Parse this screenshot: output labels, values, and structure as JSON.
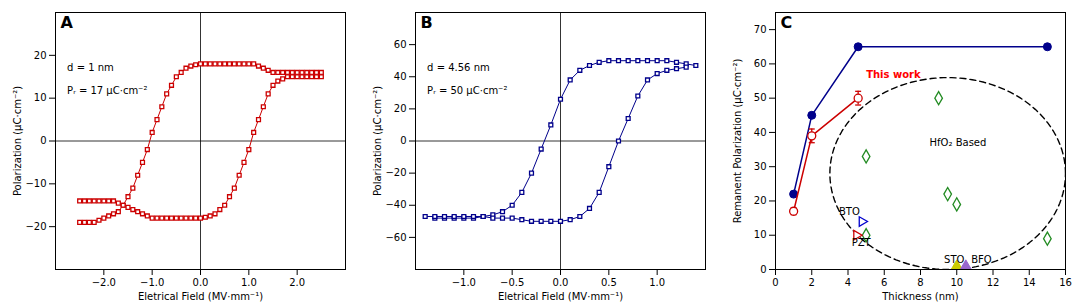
{
  "chart_data": [
    {
      "type": "line",
      "panel_label": "A",
      "xlabel": "Eletrical Field (MV·mm⁻¹)",
      "ylabel": "Polarization (μC·cm⁻²)",
      "xlim": [
        -3,
        3
      ],
      "ylim": [
        -30,
        30
      ],
      "xticks": [
        -2,
        -1,
        0,
        1,
        2
      ],
      "yticks": [
        -20,
        -10,
        0,
        10,
        20
      ],
      "hline": 0,
      "vline": 0,
      "annotations": [
        {
          "text": "d = 1 nm"
        },
        {
          "text": "Pᵣ = 17 μC·cm⁻²"
        }
      ],
      "series": [
        {
          "x": [
            -2.5,
            -2.4,
            -2.3,
            -2.2,
            -2.1,
            -2.0,
            -1.9,
            -1.8,
            -1.7,
            -1.6,
            -1.5,
            -1.4,
            -1.3,
            -1.2,
            -1.1,
            -1.0,
            -0.9,
            -0.8,
            -0.7,
            -0.6,
            -0.5,
            -0.4,
            -0.3,
            -0.2,
            -0.1,
            0.0,
            0.1,
            0.2,
            0.3,
            0.4,
            0.5,
            0.6,
            0.7,
            0.8,
            0.9,
            1.0,
            1.1,
            1.2,
            1.3,
            1.4,
            1.5,
            1.6,
            1.7,
            1.8,
            1.9,
            2.0,
            2.1,
            2.2,
            2.3,
            2.4,
            2.5
          ],
          "values": [
            -19,
            -19,
            -19,
            -19,
            -18.5,
            -18,
            -17.5,
            -17,
            -16.5,
            -15,
            -13,
            -11,
            -8,
            -5,
            -2,
            2,
            5,
            8,
            11,
            13,
            15,
            16,
            17,
            17.5,
            17.8,
            18,
            18,
            18,
            18,
            18,
            18,
            18,
            18,
            18,
            18,
            18,
            18,
            17.5,
            17,
            16.5,
            16,
            16,
            16,
            16,
            16,
            16,
            16,
            16,
            16,
            16,
            16
          ],
          "color": "#cc0000",
          "marker": "square_open"
        },
        {
          "x": [
            2.5,
            2.4,
            2.3,
            2.2,
            2.1,
            2.0,
            1.9,
            1.8,
            1.7,
            1.6,
            1.5,
            1.4,
            1.3,
            1.2,
            1.1,
            1.0,
            0.9,
            0.8,
            0.7,
            0.6,
            0.5,
            0.4,
            0.3,
            0.2,
            0.1,
            0.0,
            -0.1,
            -0.2,
            -0.3,
            -0.4,
            -0.5,
            -0.6,
            -0.7,
            -0.8,
            -0.9,
            -1.0,
            -1.1,
            -1.2,
            -1.3,
            -1.4,
            -1.5,
            -1.6,
            -1.7,
            -1.8,
            -1.9,
            -2.0,
            -2.1,
            -2.2,
            -2.3,
            -2.4,
            -2.5
          ],
          "values": [
            15,
            15,
            15,
            15,
            15,
            15,
            15,
            15,
            14.5,
            14,
            13,
            11,
            8,
            5,
            2,
            -2,
            -5,
            -8,
            -11,
            -13,
            -15,
            -16,
            -17,
            -17.5,
            -17.8,
            -18,
            -18,
            -18,
            -18,
            -18,
            -18,
            -18,
            -18,
            -18,
            -18,
            -18,
            -17.5,
            -17,
            -16.5,
            -16,
            -15.5,
            -15,
            -14.5,
            -14,
            -14,
            -14,
            -14,
            -14,
            -14,
            -14,
            -14
          ],
          "color": "#cc0000",
          "marker": "square_open"
        }
      ]
    },
    {
      "type": "line",
      "panel_label": "B",
      "xlabel": "Eletrical Field (MV·mm⁻¹)",
      "ylabel": "Polarization (μC·cm⁻²)",
      "xlim": [
        -1.5,
        1.5
      ],
      "ylim": [
        -80,
        80
      ],
      "xticks": [
        {
          "value": -1.0,
          "label": "−1.0"
        },
        {
          "value": -0.5,
          "label": "−0.5"
        },
        {
          "value": 0.0,
          "label": "0.0"
        },
        {
          "value": 0.5,
          "label": "0.5"
        },
        {
          "value": 1.0,
          "label": "1.0"
        }
      ],
      "yticks": [
        -60,
        -40,
        -20,
        0,
        20,
        40,
        60
      ],
      "hline": 0,
      "vline": 0,
      "annotations": [
        {
          "text": "d = 4.56 nm"
        },
        {
          "text": "Pᵣ = 50 μC·cm⁻²"
        }
      ],
      "series": [
        {
          "x": [
            -1.3,
            -1.2,
            -1.1,
            -1.0,
            -0.9,
            -0.8,
            -0.7,
            -0.6,
            -0.5,
            -0.4,
            -0.3,
            -0.2,
            -0.1,
            0.0,
            0.1,
            0.2,
            0.3,
            0.4,
            0.5,
            0.6,
            0.7,
            0.8,
            0.9,
            1.0,
            1.1,
            1.2,
            1.3,
            1.4
          ],
          "values": [
            -48,
            -48,
            -48,
            -48,
            -48,
            -47,
            -46,
            -44,
            -40,
            -32,
            -20,
            -5,
            10,
            26,
            38,
            44,
            47,
            49,
            50,
            50,
            50,
            50,
            50,
            50,
            50,
            49,
            48,
            47
          ],
          "color": "#00008B",
          "marker": "square_open"
        },
        {
          "x": [
            1.3,
            1.2,
            1.1,
            1.0,
            0.9,
            0.8,
            0.7,
            0.6,
            0.5,
            0.4,
            0.3,
            0.2,
            0.1,
            0.0,
            -0.1,
            -0.2,
            -0.3,
            -0.4,
            -0.5,
            -0.6,
            -0.7,
            -0.8,
            -0.9,
            -1.0,
            -1.1,
            -1.2,
            -1.3,
            -1.4
          ],
          "values": [
            46,
            45,
            44,
            42,
            38,
            28,
            14,
            0,
            -16,
            -32,
            -42,
            -47,
            -49,
            -50,
            -50,
            -50,
            -50,
            -49,
            -48,
            -48,
            -48,
            -47,
            -47,
            -47,
            -47,
            -47,
            -47,
            -47
          ],
          "color": "#00008B",
          "marker": "square_open"
        }
      ]
    },
    {
      "type": "line",
      "panel_label": "C",
      "xlabel": "Thickness (nm)",
      "ylabel": "Remanent Polarization (μC·cm⁻²)",
      "xlim": [
        0,
        16
      ],
      "ylim": [
        0,
        75
      ],
      "xticks": [
        0,
        2,
        4,
        6,
        8,
        10,
        12,
        14,
        16
      ],
      "yticks": [
        0,
        10,
        20,
        30,
        40,
        50,
        60,
        70
      ],
      "series": [
        {
          "type": "line",
          "x": [
            1,
            2,
            4.56,
            15
          ],
          "values": [
            22,
            45,
            65,
            65
          ],
          "color": "#00008B",
          "marker": "circle"
        },
        {
          "type": "line",
          "x": [
            1,
            2,
            4.56
          ],
          "values": [
            17,
            39,
            50
          ],
          "yerr": [
            1,
            2,
            2
          ],
          "color": "#cc0000",
          "marker": "circle_open"
        },
        {
          "type": "scatter",
          "x": [
            5,
            5,
            9,
            9.5,
            10,
            15
          ],
          "values": [
            33,
            10,
            50,
            22,
            19,
            9
          ],
          "color": "#228B22",
          "marker": "diamond_open"
        },
        {
          "type": "scatter",
          "x": [
            4.8
          ],
          "values": [
            14
          ],
          "color": "#0000CD",
          "marker": "triangle_right_open"
        },
        {
          "type": "scatter",
          "x": [
            4.5
          ],
          "values": [
            10
          ],
          "color": "#cc0000",
          "marker": "triangle_right_open"
        },
        {
          "type": "scatter",
          "x": [
            10
          ],
          "values": [
            1
          ],
          "color": "#CCCC00",
          "marker": "triangle_up"
        },
        {
          "type": "scatter",
          "x": [
            10.5
          ],
          "values": [
            1
          ],
          "color": "#9966CC",
          "marker": "triangle_up"
        }
      ],
      "ellipse": {
        "cx": 9.5,
        "cy": 28,
        "rx": 6.5,
        "ry": 28,
        "line_style": "dashed",
        "color": "black"
      },
      "annotations": [
        {
          "text": "This work",
          "x": 5.0,
          "y": 56,
          "color": "red"
        },
        {
          "text": "HfO₂ Based",
          "x": 8.5,
          "y": 36
        },
        {
          "text": "BTO",
          "x": 3.5,
          "y": 16
        },
        {
          "text": "PZT",
          "x": 4.2,
          "y": 7
        },
        {
          "text": "STO",
          "x": 9.3,
          "y": 2
        },
        {
          "text": "BFO",
          "x": 10.8,
          "y": 2
        }
      ]
    }
  ]
}
